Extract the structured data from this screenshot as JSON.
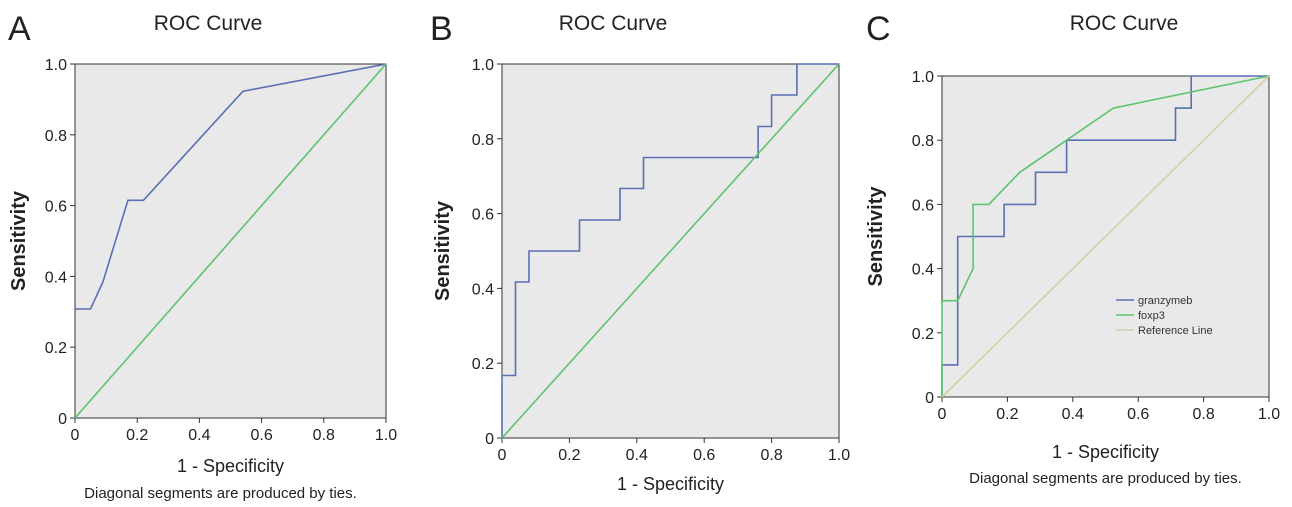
{
  "colors": {
    "roc_blue": "#5b6fb4",
    "roc_green": "#5cc46e",
    "reference_tan": "#d4cfa6",
    "plot_bg": "#e9e9e9"
  },
  "chart_data": [
    {
      "panel": "A",
      "type": "line",
      "title": "ROC Curve",
      "xlabel": "1 - Specificity",
      "ylabel": "Sensitivity",
      "footnote": "Diagonal segments are produced by ties.",
      "xlim": [
        0,
        1
      ],
      "ylim": [
        0,
        1
      ],
      "x_ticks": [
        "0",
        "0.2",
        "0.4",
        "0.6",
        "0.8",
        "1.0"
      ],
      "y_ticks": [
        "0",
        "0.2",
        "0.4",
        "0.6",
        "0.8",
        "1.0"
      ],
      "grid": false,
      "legend": null,
      "series": [
        {
          "color": "#5b6fb4",
          "points": [
            [
              0,
              0.308
            ],
            [
              0.05,
              0.308
            ],
            [
              0.09,
              0.385
            ],
            [
              0.17,
              0.615
            ],
            [
              0.22,
              0.615
            ],
            [
              0.54,
              0.923
            ],
            [
              1,
              1
            ]
          ]
        },
        {
          "color": "#5cc46e",
          "points": [
            [
              0,
              0
            ],
            [
              1,
              1
            ]
          ]
        }
      ]
    },
    {
      "panel": "B",
      "type": "line",
      "title": "ROC Curve",
      "xlabel": "1 - Specificity",
      "ylabel": "Sensitivity",
      "footnote": "",
      "xlim": [
        0,
        1
      ],
      "ylim": [
        0,
        1
      ],
      "x_ticks": [
        "0",
        "0.2",
        "0.4",
        "0.6",
        "0.8",
        "1.0"
      ],
      "y_ticks": [
        "0",
        "0.2",
        "0.4",
        "0.6",
        "0.8",
        "1.0"
      ],
      "grid": false,
      "legend": null,
      "series": [
        {
          "color": "#5b6fb4",
          "points": [
            [
              0,
              0
            ],
            [
              0,
              0.167
            ],
            [
              0.04,
              0.167
            ],
            [
              0.04,
              0.417
            ],
            [
              0.08,
              0.417
            ],
            [
              0.08,
              0.5
            ],
            [
              0.23,
              0.5
            ],
            [
              0.23,
              0.583
            ],
            [
              0.35,
              0.583
            ],
            [
              0.35,
              0.667
            ],
            [
              0.42,
              0.667
            ],
            [
              0.42,
              0.75
            ],
            [
              0.76,
              0.75
            ],
            [
              0.76,
              0.833
            ],
            [
              0.8,
              0.833
            ],
            [
              0.8,
              0.917
            ],
            [
              0.875,
              0.917
            ],
            [
              0.875,
              1
            ],
            [
              1,
              1
            ]
          ]
        },
        {
          "color": "#5cc46e",
          "points": [
            [
              0,
              0
            ],
            [
              1,
              1
            ]
          ]
        }
      ]
    },
    {
      "panel": "C",
      "type": "line",
      "title": "ROC Curve",
      "xlabel": "1 - Specificity",
      "ylabel": "Sensitivity",
      "footnote": "Diagonal segments are produced by ties.",
      "xlim": [
        0,
        1
      ],
      "ylim": [
        0,
        1
      ],
      "x_ticks": [
        "0",
        "0.2",
        "0.4",
        "0.6",
        "0.8",
        "1.0"
      ],
      "y_ticks": [
        "0",
        "0.2",
        "0.4",
        "0.6",
        "0.8",
        "1.0"
      ],
      "grid": false,
      "legend": {
        "position": "center-right",
        "entries": [
          "granzymeb",
          "foxp3",
          "Reference Line"
        ]
      },
      "series": [
        {
          "name": "granzymeb",
          "color": "#5b6fb4",
          "points": [
            [
              0,
              0
            ],
            [
              0,
              0.1
            ],
            [
              0.048,
              0.1
            ],
            [
              0.048,
              0.5
            ],
            [
              0.19,
              0.5
            ],
            [
              0.19,
              0.6
            ],
            [
              0.286,
              0.6
            ],
            [
              0.286,
              0.7
            ],
            [
              0.381,
              0.7
            ],
            [
              0.381,
              0.8
            ],
            [
              0.714,
              0.8
            ],
            [
              0.714,
              0.9
            ],
            [
              0.762,
              0.9
            ],
            [
              0.762,
              1
            ],
            [
              1,
              1
            ]
          ]
        },
        {
          "name": "foxp3",
          "color": "#5cc46e",
          "points": [
            [
              0,
              0
            ],
            [
              0,
              0.3
            ],
            [
              0.048,
              0.3
            ],
            [
              0.095,
              0.4
            ],
            [
              0.095,
              0.6
            ],
            [
              0.143,
              0.6
            ],
            [
              0.238,
              0.7
            ],
            [
              0.381,
              0.8
            ],
            [
              0.524,
              0.9
            ],
            [
              1,
              1
            ]
          ]
        },
        {
          "name": "Reference Line",
          "color": "#d4cfa6",
          "points": [
            [
              0,
              0
            ],
            [
              1,
              1
            ]
          ]
        }
      ]
    }
  ]
}
